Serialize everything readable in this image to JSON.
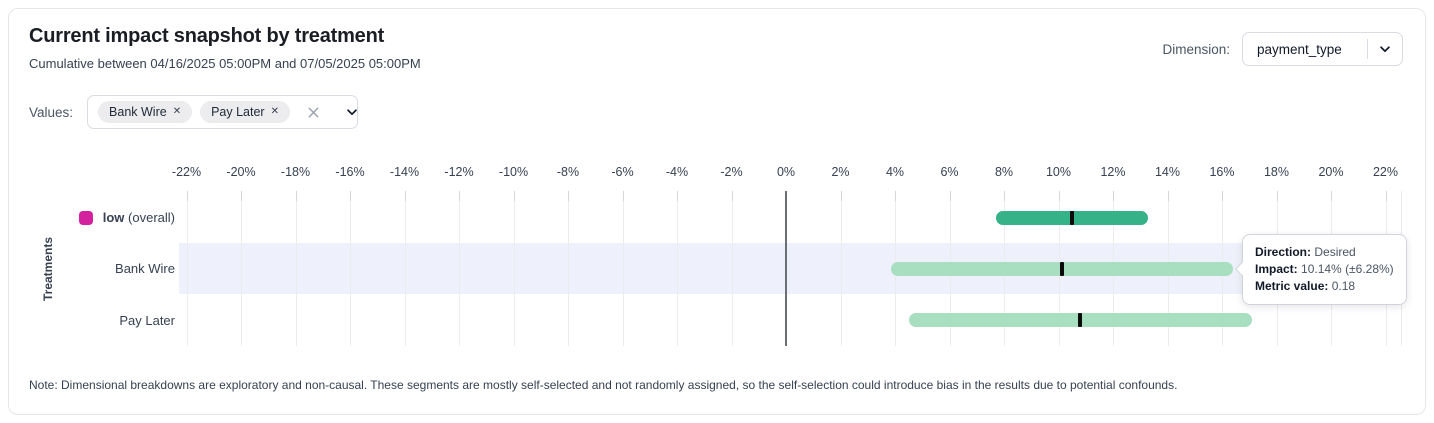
{
  "header": {
    "title": "Current impact snapshot by treatment",
    "subtitle": "Cumulative between 04/16/2025 05:00PM and 07/05/2025 05:00PM",
    "dimension_label": "Dimension:",
    "dimension_value": "payment_type"
  },
  "filters": {
    "values_label": "Values:",
    "chips": [
      {
        "label": "Bank Wire",
        "remove_glyph": "✕"
      },
      {
        "label": "Pay Later",
        "remove_glyph": "✕"
      }
    ]
  },
  "chart_data": {
    "type": "bar",
    "subtype": "horizontal-interval",
    "ylabel": "Treatments",
    "xlabel": "",
    "xlim": [
      -22.5,
      22.8
    ],
    "x_ticks": [
      -22,
      -20,
      -18,
      -16,
      -14,
      -12,
      -10,
      -8,
      -6,
      -4,
      -2,
      0,
      2,
      4,
      6,
      8,
      10,
      12,
      14,
      16,
      18,
      20,
      22
    ],
    "x_tick_suffix": "%",
    "grid": true,
    "zero_line": true,
    "rows": [
      {
        "label": "low",
        "label_suffix": " (overall)",
        "legend_color": "#d4219e",
        "impact_pct": 10.5,
        "ci_low_pct": 7.7,
        "ci_high_pct": 13.3,
        "bar_color": "#35b287",
        "highlighted": false
      },
      {
        "label": "Bank Wire",
        "label_suffix": "",
        "legend_color": null,
        "impact_pct": 10.14,
        "ci_low_pct": 3.86,
        "ci_high_pct": 16.42,
        "bar_color": "#a9dfc1",
        "highlighted": true
      },
      {
        "label": "Pay Later",
        "label_suffix": "",
        "legend_color": null,
        "impact_pct": 10.8,
        "ci_low_pct": 4.5,
        "ci_high_pct": 17.1,
        "bar_color": "#a9dfc1",
        "highlighted": false
      }
    ]
  },
  "tooltip": {
    "direction_label": "Direction:",
    "direction_value": "Desired",
    "impact_label": "Impact:",
    "impact_value": "10.14% (±6.28%)",
    "metric_label": "Metric value:",
    "metric_value": "0.18"
  },
  "note": "Note: Dimensional breakdowns are exploratory and non-causal. These segments are mostly self-selected and not randomly assigned, so the self-selection could introduce bias in the results due to potential confounds.",
  "colors": {
    "highlight_band": "#eef0fb",
    "gridline": "#ececec",
    "zero_line": "#6b6f76",
    "impact_tick": "#0b0b0b",
    "card_border": "#e5e7eb"
  }
}
